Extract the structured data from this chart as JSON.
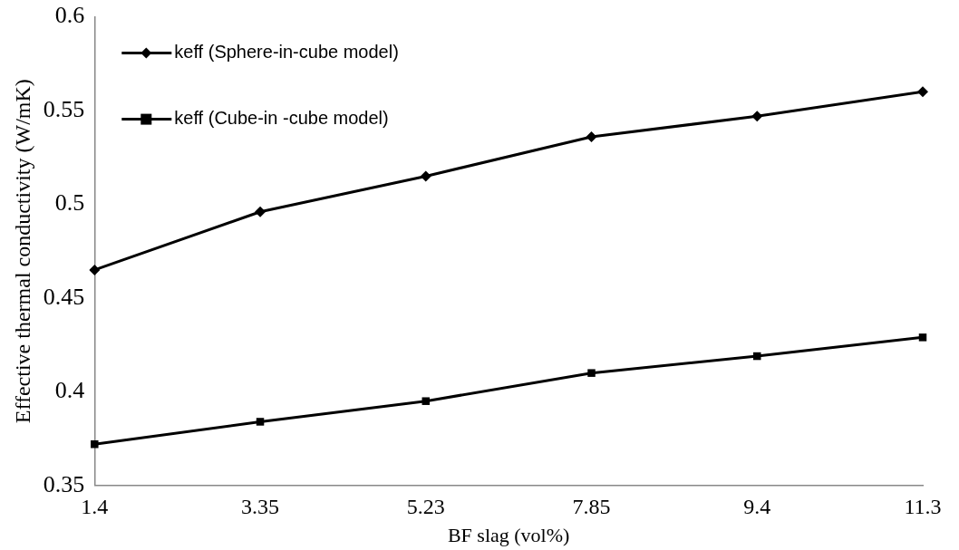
{
  "chart_data": {
    "type": "line",
    "xlabel": "BF slag (vol%)",
    "ylabel": "Effective thermal conductivity (W/mK)",
    "categories": [
      "1.4",
      "3.35",
      "5.23",
      "7.85",
      "9.4",
      "11.3"
    ],
    "series": [
      {
        "name": "keff (Sphere-in-cube model)",
        "color": "#000000",
        "marker": "diamond",
        "values": [
          0.465,
          0.496,
          0.515,
          0.536,
          0.547,
          0.56
        ]
      },
      {
        "name": "keff (Cube-in -cube model)",
        "color": "#000000",
        "marker": "square",
        "values": [
          0.372,
          0.384,
          0.395,
          0.41,
          0.419,
          0.429
        ]
      }
    ],
    "ylim": [
      0.35,
      0.6
    ],
    "yticks": [
      0.35,
      0.4,
      0.45,
      0.5,
      0.55,
      0.6
    ],
    "grid": false,
    "legend": "top left",
    "line_style": "solid"
  }
}
